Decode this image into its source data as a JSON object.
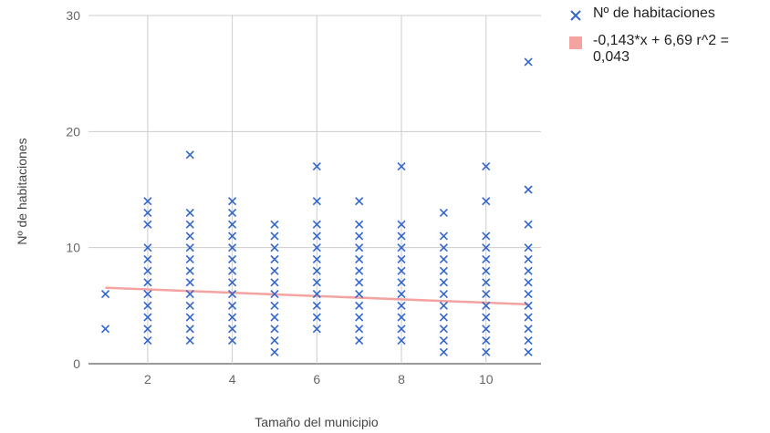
{
  "chart_data": {
    "type": "scatter",
    "xlabel": "Tamaño del municipio",
    "ylabel": "Nº de habitaciones",
    "xlim": [
      0.6,
      11.3
    ],
    "ylim": [
      0,
      30
    ],
    "xticks": [
      "2",
      "4",
      "6",
      "8",
      "10"
    ],
    "yticks": [
      "0",
      "10",
      "20",
      "30"
    ],
    "grid": true,
    "legend_position": "right",
    "series": [
      {
        "name": "Nº de habitaciones",
        "color": "#3366cc",
        "marker": "x",
        "points": [
          [
            1,
            3
          ],
          [
            1,
            6
          ],
          [
            2,
            2
          ],
          [
            2,
            3
          ],
          [
            2,
            4
          ],
          [
            2,
            5
          ],
          [
            2,
            6
          ],
          [
            2,
            7
          ],
          [
            2,
            8
          ],
          [
            2,
            9
          ],
          [
            2,
            10
          ],
          [
            2,
            12
          ],
          [
            2,
            13
          ],
          [
            2,
            14
          ],
          [
            3,
            2
          ],
          [
            3,
            3
          ],
          [
            3,
            4
          ],
          [
            3,
            5
          ],
          [
            3,
            6
          ],
          [
            3,
            7
          ],
          [
            3,
            8
          ],
          [
            3,
            9
          ],
          [
            3,
            10
          ],
          [
            3,
            11
          ],
          [
            3,
            12
          ],
          [
            3,
            13
          ],
          [
            3,
            18
          ],
          [
            4,
            2
          ],
          [
            4,
            3
          ],
          [
            4,
            4
          ],
          [
            4,
            5
          ],
          [
            4,
            6
          ],
          [
            4,
            7
          ],
          [
            4,
            8
          ],
          [
            4,
            9
          ],
          [
            4,
            10
          ],
          [
            4,
            11
          ],
          [
            4,
            12
          ],
          [
            4,
            13
          ],
          [
            4,
            14
          ],
          [
            5,
            1
          ],
          [
            5,
            2
          ],
          [
            5,
            3
          ],
          [
            5,
            4
          ],
          [
            5,
            5
          ],
          [
            5,
            6
          ],
          [
            5,
            7
          ],
          [
            5,
            8
          ],
          [
            5,
            9
          ],
          [
            5,
            10
          ],
          [
            5,
            11
          ],
          [
            5,
            12
          ],
          [
            6,
            3
          ],
          [
            6,
            4
          ],
          [
            6,
            5
          ],
          [
            6,
            6
          ],
          [
            6,
            7
          ],
          [
            6,
            8
          ],
          [
            6,
            9
          ],
          [
            6,
            10
          ],
          [
            6,
            11
          ],
          [
            6,
            12
          ],
          [
            6,
            14
          ],
          [
            6,
            17
          ],
          [
            7,
            2
          ],
          [
            7,
            3
          ],
          [
            7,
            4
          ],
          [
            7,
            5
          ],
          [
            7,
            6
          ],
          [
            7,
            7
          ],
          [
            7,
            8
          ],
          [
            7,
            9
          ],
          [
            7,
            10
          ],
          [
            7,
            11
          ],
          [
            7,
            12
          ],
          [
            7,
            14
          ],
          [
            8,
            2
          ],
          [
            8,
            3
          ],
          [
            8,
            4
          ],
          [
            8,
            5
          ],
          [
            8,
            6
          ],
          [
            8,
            7
          ],
          [
            8,
            8
          ],
          [
            8,
            9
          ],
          [
            8,
            10
          ],
          [
            8,
            11
          ],
          [
            8,
            12
          ],
          [
            8,
            17
          ],
          [
            9,
            1
          ],
          [
            9,
            2
          ],
          [
            9,
            3
          ],
          [
            9,
            4
          ],
          [
            9,
            5
          ],
          [
            9,
            6
          ],
          [
            9,
            7
          ],
          [
            9,
            8
          ],
          [
            9,
            9
          ],
          [
            9,
            10
          ],
          [
            9,
            11
          ],
          [
            9,
            13
          ],
          [
            10,
            1
          ],
          [
            10,
            2
          ],
          [
            10,
            3
          ],
          [
            10,
            4
          ],
          [
            10,
            5
          ],
          [
            10,
            6
          ],
          [
            10,
            7
          ],
          [
            10,
            8
          ],
          [
            10,
            9
          ],
          [
            10,
            10
          ],
          [
            10,
            11
          ],
          [
            10,
            14
          ],
          [
            10,
            17
          ],
          [
            11,
            1
          ],
          [
            11,
            2
          ],
          [
            11,
            3
          ],
          [
            11,
            4
          ],
          [
            11,
            5
          ],
          [
            11,
            6
          ],
          [
            11,
            7
          ],
          [
            11,
            8
          ],
          [
            11,
            9
          ],
          [
            11,
            10
          ],
          [
            11,
            12
          ],
          [
            11,
            15
          ],
          [
            11,
            26
          ]
        ]
      },
      {
        "name": "-0,143*x + 6,69 r^2 = 0,043",
        "color": "#f4a3a0",
        "type": "trendline",
        "slope": -0.143,
        "intercept": 6.69,
        "x_range": [
          1,
          11
        ]
      }
    ]
  }
}
